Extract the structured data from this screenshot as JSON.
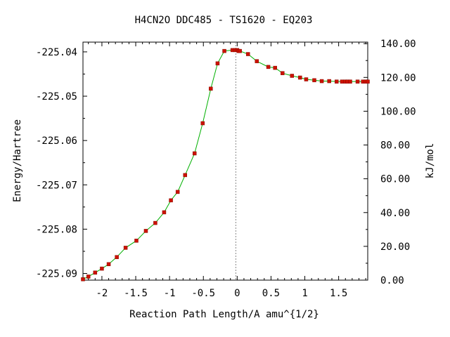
{
  "chart_data": {
    "type": "line",
    "title": "H4CN2O   DDC485 - TS1620 - EQ203",
    "xlabel": "Reaction Path Length/A amu^{1/2}",
    "ylabel": "Energy/Hartree",
    "y2label": "kJ/mol",
    "xlim": [
      -2.28,
      1.93
    ],
    "ylim": [
      -225.0915,
      -225.0378
    ],
    "y2lim": [
      0,
      140.9
    ],
    "x_ticks": [
      -2,
      -1.5,
      -1,
      -0.5,
      0,
      0.5,
      1,
      1.5
    ],
    "x_tick_labels": [
      "-2",
      "-1.5",
      "-1",
      "-0.5",
      "0",
      "0.5",
      "1",
      "1.5"
    ],
    "y_ticks": [
      -225.04,
      -225.05,
      -225.06,
      -225.07,
      -225.08,
      -225.09
    ],
    "y_tick_labels": [
      "-225.04",
      "-225.05",
      "-225.06",
      "-225.07",
      "-225.08",
      "-225.09"
    ],
    "y2_ticks": [
      0,
      20,
      40,
      60,
      80,
      100,
      120,
      140
    ],
    "y2_tick_labels": [
      "0.00",
      "20.00",
      "40.00",
      "60.00",
      "80.00",
      "100.00",
      "120.00",
      "140.00"
    ],
    "transition_state_x": -0.02,
    "grid": false,
    "curve_color": "#00b000",
    "point_color": "#cc1100",
    "series": [
      {
        "x": [
          -2.28,
          -2.2,
          -2.1,
          -2.0,
          -1.9,
          -1.78,
          -1.65,
          -1.49,
          -1.35,
          -1.21,
          -1.08,
          -0.98,
          -0.88,
          -0.77,
          -0.63,
          -0.51,
          -0.39,
          -0.29,
          -0.19,
          -0.07,
          -0.03,
          0.0,
          0.02,
          0.04,
          0.16,
          0.29,
          0.46,
          0.56,
          0.67,
          0.81,
          0.93,
          1.02,
          1.14,
          1.25,
          1.36,
          1.47,
          1.55,
          1.6,
          1.63,
          1.67,
          1.78,
          1.86,
          1.9,
          1.93
        ],
        "values": [
          -225.0913,
          -225.0907,
          -225.0898,
          -225.0889,
          -225.0879,
          -225.0863,
          -225.0842,
          -225.0826,
          -225.0804,
          -225.0786,
          -225.0762,
          -225.0735,
          -225.0716,
          -225.0678,
          -225.0629,
          -225.0561,
          -225.0483,
          -225.0426,
          -225.0398,
          -225.0396,
          -225.0396,
          -225.0396,
          -225.0398,
          -225.0398,
          -225.0405,
          -225.0421,
          -225.0434,
          -225.0436,
          -225.0448,
          -225.0454,
          -225.0458,
          -225.0462,
          -225.0464,
          -225.0466,
          -225.0466,
          -225.0467,
          -225.0467,
          -225.0467,
          -225.0467,
          -225.0467,
          -225.0467,
          -225.0467,
          -225.0467,
          -225.0467
        ]
      }
    ]
  }
}
